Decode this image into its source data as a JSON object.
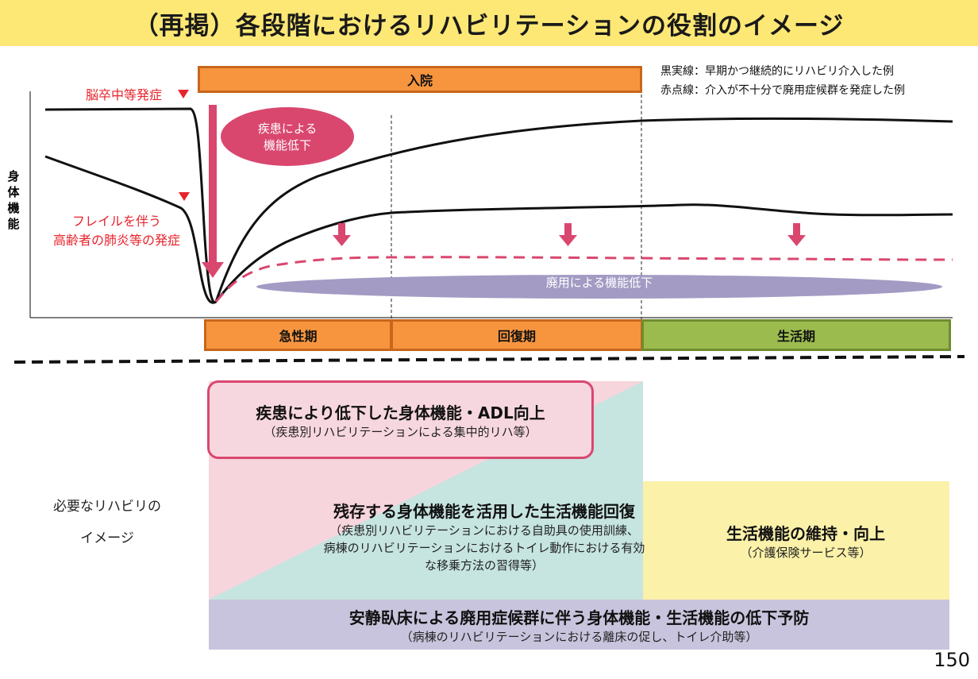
{
  "title": "（再掲）各段階におけるリハビリテーションの役割のイメージ",
  "chart": {
    "admission_label": "入院",
    "legend_black": "黒実線：早期かつ継続的にリハビリ介入した例",
    "legend_red": "赤点線：介入が不十分で廃用症候群を発症した例",
    "stroke_onset": "脳卒中等発症",
    "frail_line1": "フレイルを伴う",
    "frail_line2": "高齢者の肺炎等の発症",
    "y_axis_label": "身体機能",
    "disease_decline_line1": "疾患による",
    "disease_decline_line2": "機能低下",
    "disuse_decline": "廃用による機能低下",
    "phases": [
      "急性期",
      "回復期",
      "生活期"
    ],
    "colors": {
      "orange": "#f7953f",
      "green": "#9bbb4f",
      "pink_arrow": "#d9476f",
      "purple": "#a39bc4",
      "red_marker": "#e8232b"
    }
  },
  "rehab": {
    "side_label_line1": "必要なリハビリの",
    "side_label_line2": "イメージ",
    "acute_title": "疾患により低下した身体機能・ADL向上",
    "acute_sub": "（疾患別リハビリテーションによる集中的リハ等）",
    "recovery_title": "残存する身体機能を活用した生活機能回復",
    "recovery_sub1": "（疾患別リハビリテーションにおける自助具の使用訓練、",
    "recovery_sub2": "病棟のリハビリテーションにおけるトイレ動作における有効",
    "recovery_sub3": "な移乗方法の習得等）",
    "life_title": "生活機能の維持・向上",
    "life_sub": "（介護保険サービス等）",
    "prevent_title": "安静臥床による廃用症候群に伴う身体機能・生活機能の低下予防",
    "prevent_sub": "（病棟のリハビリテーションにおける離床の促し、トイレ介助等）"
  },
  "page_number": "150"
}
